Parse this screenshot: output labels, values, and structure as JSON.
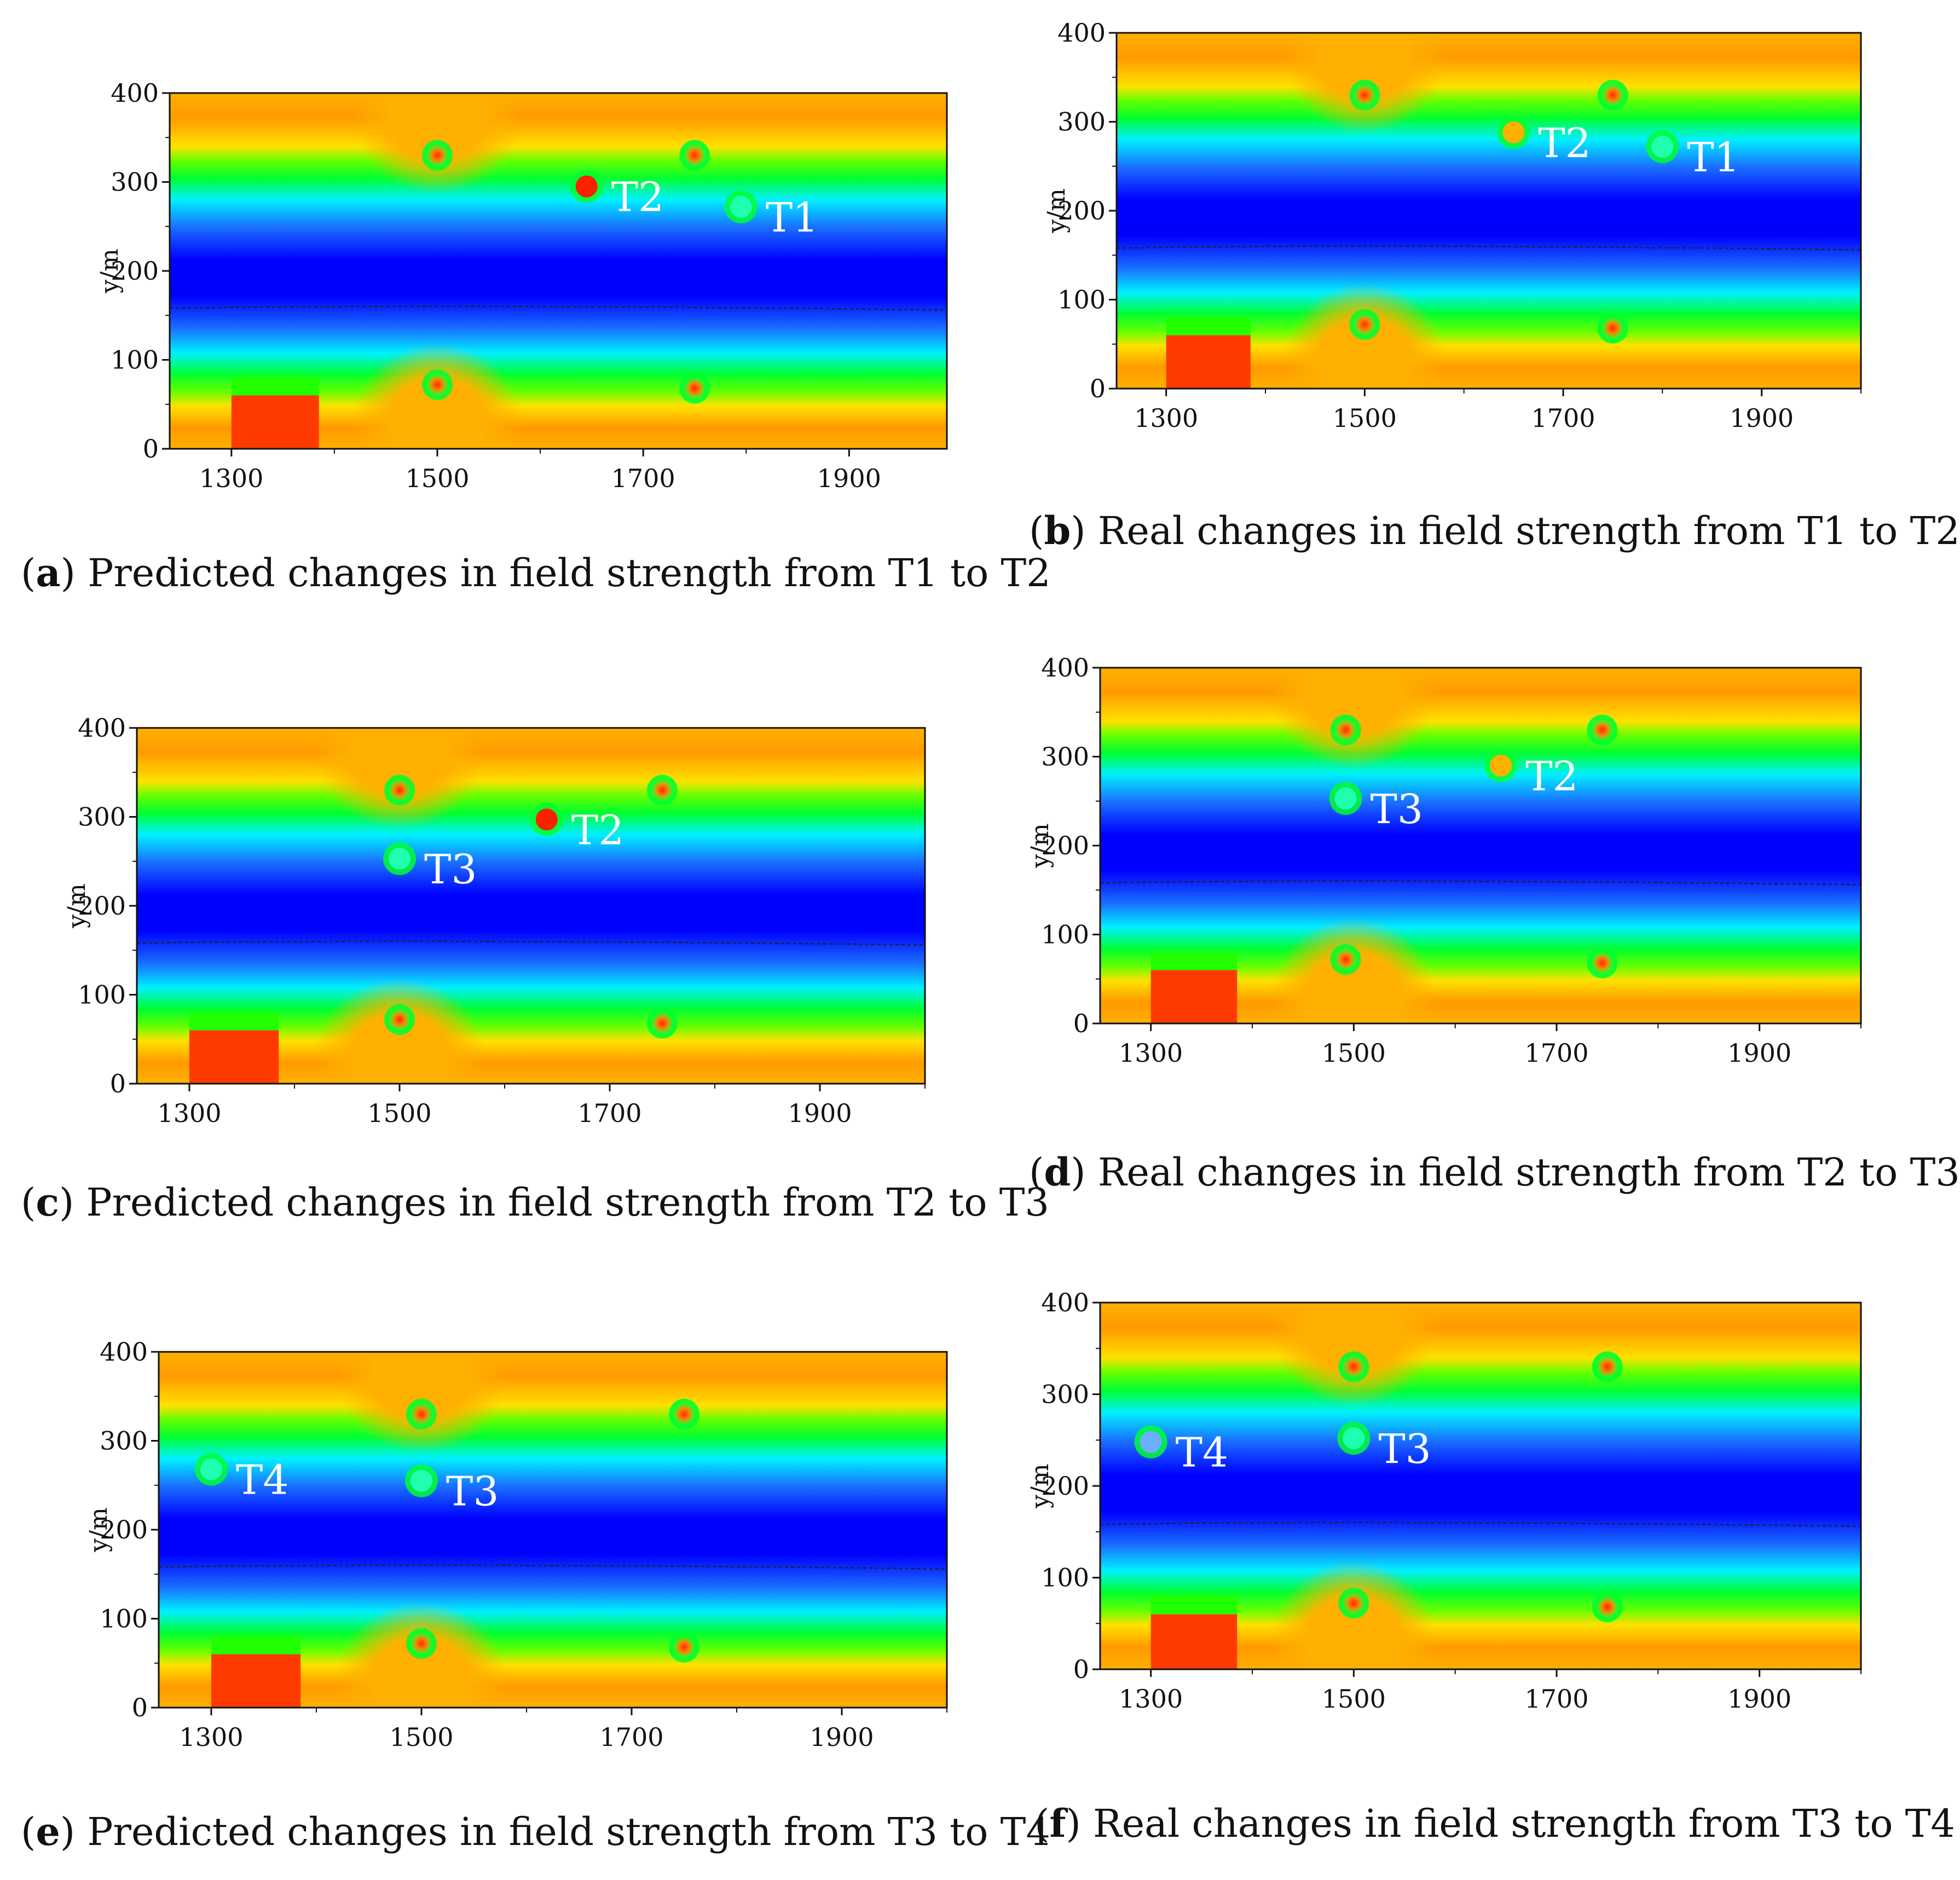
{
  "chart_data": [
    {
      "type": "heatmap",
      "id": "a",
      "letter": "a",
      "caption": "Predicted changes in field strength from T1 to T2",
      "ylabel": "y/m",
      "xlim": [
        1240,
        1995
      ],
      "ylim": [
        0,
        400
      ],
      "x_ticks": [
        1300,
        1500,
        1700,
        1900
      ],
      "y_ticks": [
        0,
        100,
        200,
        300,
        400
      ],
      "markers": [
        {
          "label": "T2",
          "x": 1645,
          "y": 295,
          "color": "#ff2000"
        },
        {
          "label": "T1",
          "x": 1795,
          "y": 272,
          "color": "#20ffb0"
        }
      ],
      "hotspots": [
        {
          "x": 1500,
          "y": 330
        },
        {
          "x": 1750,
          "y": 330
        },
        {
          "x": 1500,
          "y": 72
        },
        {
          "x": 1750,
          "y": 68
        }
      ]
    },
    {
      "type": "heatmap",
      "id": "b",
      "letter": "b",
      "caption": "Real changes in field strength from T1 to T2",
      "ylabel": "y/m",
      "xlim": [
        1250,
        2000
      ],
      "ylim": [
        0,
        400
      ],
      "x_ticks": [
        1300,
        1500,
        1700,
        1900
      ],
      "y_ticks": [
        0,
        100,
        200,
        300,
        400
      ],
      "markers": [
        {
          "label": "T2",
          "x": 1650,
          "y": 288,
          "color": "#ffb000"
        },
        {
          "label": "T1",
          "x": 1800,
          "y": 272,
          "color": "#20ffb0"
        }
      ],
      "hotspots": [
        {
          "x": 1500,
          "y": 330
        },
        {
          "x": 1750,
          "y": 330
        },
        {
          "x": 1500,
          "y": 72
        },
        {
          "x": 1750,
          "y": 68
        }
      ]
    },
    {
      "type": "heatmap",
      "id": "c",
      "letter": "c",
      "caption": "Predicted changes in field strength from T2 to T3",
      "ylabel": "y/m",
      "xlim": [
        1250,
        2000
      ],
      "ylim": [
        0,
        400
      ],
      "x_ticks": [
        1300,
        1500,
        1700,
        1900
      ],
      "y_ticks": [
        0,
        100,
        200,
        300,
        400
      ],
      "markers": [
        {
          "label": "T2",
          "x": 1640,
          "y": 297,
          "color": "#ff2000"
        },
        {
          "label": "T3",
          "x": 1500,
          "y": 253,
          "color": "#20ffb0"
        }
      ],
      "hotspots": [
        {
          "x": 1500,
          "y": 330
        },
        {
          "x": 1750,
          "y": 330
        },
        {
          "x": 1500,
          "y": 72
        },
        {
          "x": 1750,
          "y": 68
        }
      ]
    },
    {
      "type": "heatmap",
      "id": "d",
      "letter": "d",
      "caption": "Real changes in field strength from T2 to T3",
      "ylabel": "y/m",
      "xlim": [
        1250,
        2000
      ],
      "ylim": [
        0,
        400
      ],
      "x_ticks": [
        1300,
        1500,
        1700,
        1900
      ],
      "y_ticks": [
        0,
        100,
        200,
        300,
        400
      ],
      "markers": [
        {
          "label": "T2",
          "x": 1645,
          "y": 290,
          "color": "#ffb000"
        },
        {
          "label": "T3",
          "x": 1492,
          "y": 253,
          "color": "#20ffb0"
        }
      ],
      "hotspots": [
        {
          "x": 1492,
          "y": 330
        },
        {
          "x": 1745,
          "y": 330
        },
        {
          "x": 1492,
          "y": 72
        },
        {
          "x": 1745,
          "y": 68
        }
      ]
    },
    {
      "type": "heatmap",
      "id": "e",
      "letter": "e",
      "caption": "Predicted changes in field strength from T3 to T4",
      "ylabel": "y/m",
      "xlim": [
        1250,
        2000
      ],
      "ylim": [
        0,
        400
      ],
      "x_ticks": [
        1300,
        1500,
        1700,
        1900
      ],
      "y_ticks": [
        0,
        100,
        200,
        300,
        400
      ],
      "markers": [
        {
          "label": "T4",
          "x": 1300,
          "y": 268,
          "color": "#20ffb0"
        },
        {
          "label": "T3",
          "x": 1500,
          "y": 255,
          "color": "#20ffb0"
        }
      ],
      "hotspots": [
        {
          "x": 1500,
          "y": 330
        },
        {
          "x": 1750,
          "y": 330
        },
        {
          "x": 1500,
          "y": 72
        },
        {
          "x": 1750,
          "y": 68
        }
      ]
    },
    {
      "type": "heatmap",
      "id": "f",
      "letter": "f",
      "caption": "Real changes in field strength from T3 to T4",
      "ylabel": "y/m",
      "xlim": [
        1250,
        2000
      ],
      "ylim": [
        0,
        400
      ],
      "x_ticks": [
        1300,
        1500,
        1700,
        1900
      ],
      "y_ticks": [
        0,
        100,
        200,
        300,
        400
      ],
      "markers": [
        {
          "label": "T4",
          "x": 1300,
          "y": 248,
          "color": "#6ab0ff"
        },
        {
          "label": "T3",
          "x": 1500,
          "y": 252,
          "color": "#20ffb0"
        }
      ],
      "hotspots": [
        {
          "x": 1500,
          "y": 330
        },
        {
          "x": 1750,
          "y": 330
        },
        {
          "x": 1500,
          "y": 72
        },
        {
          "x": 1750,
          "y": 68
        }
      ]
    }
  ]
}
